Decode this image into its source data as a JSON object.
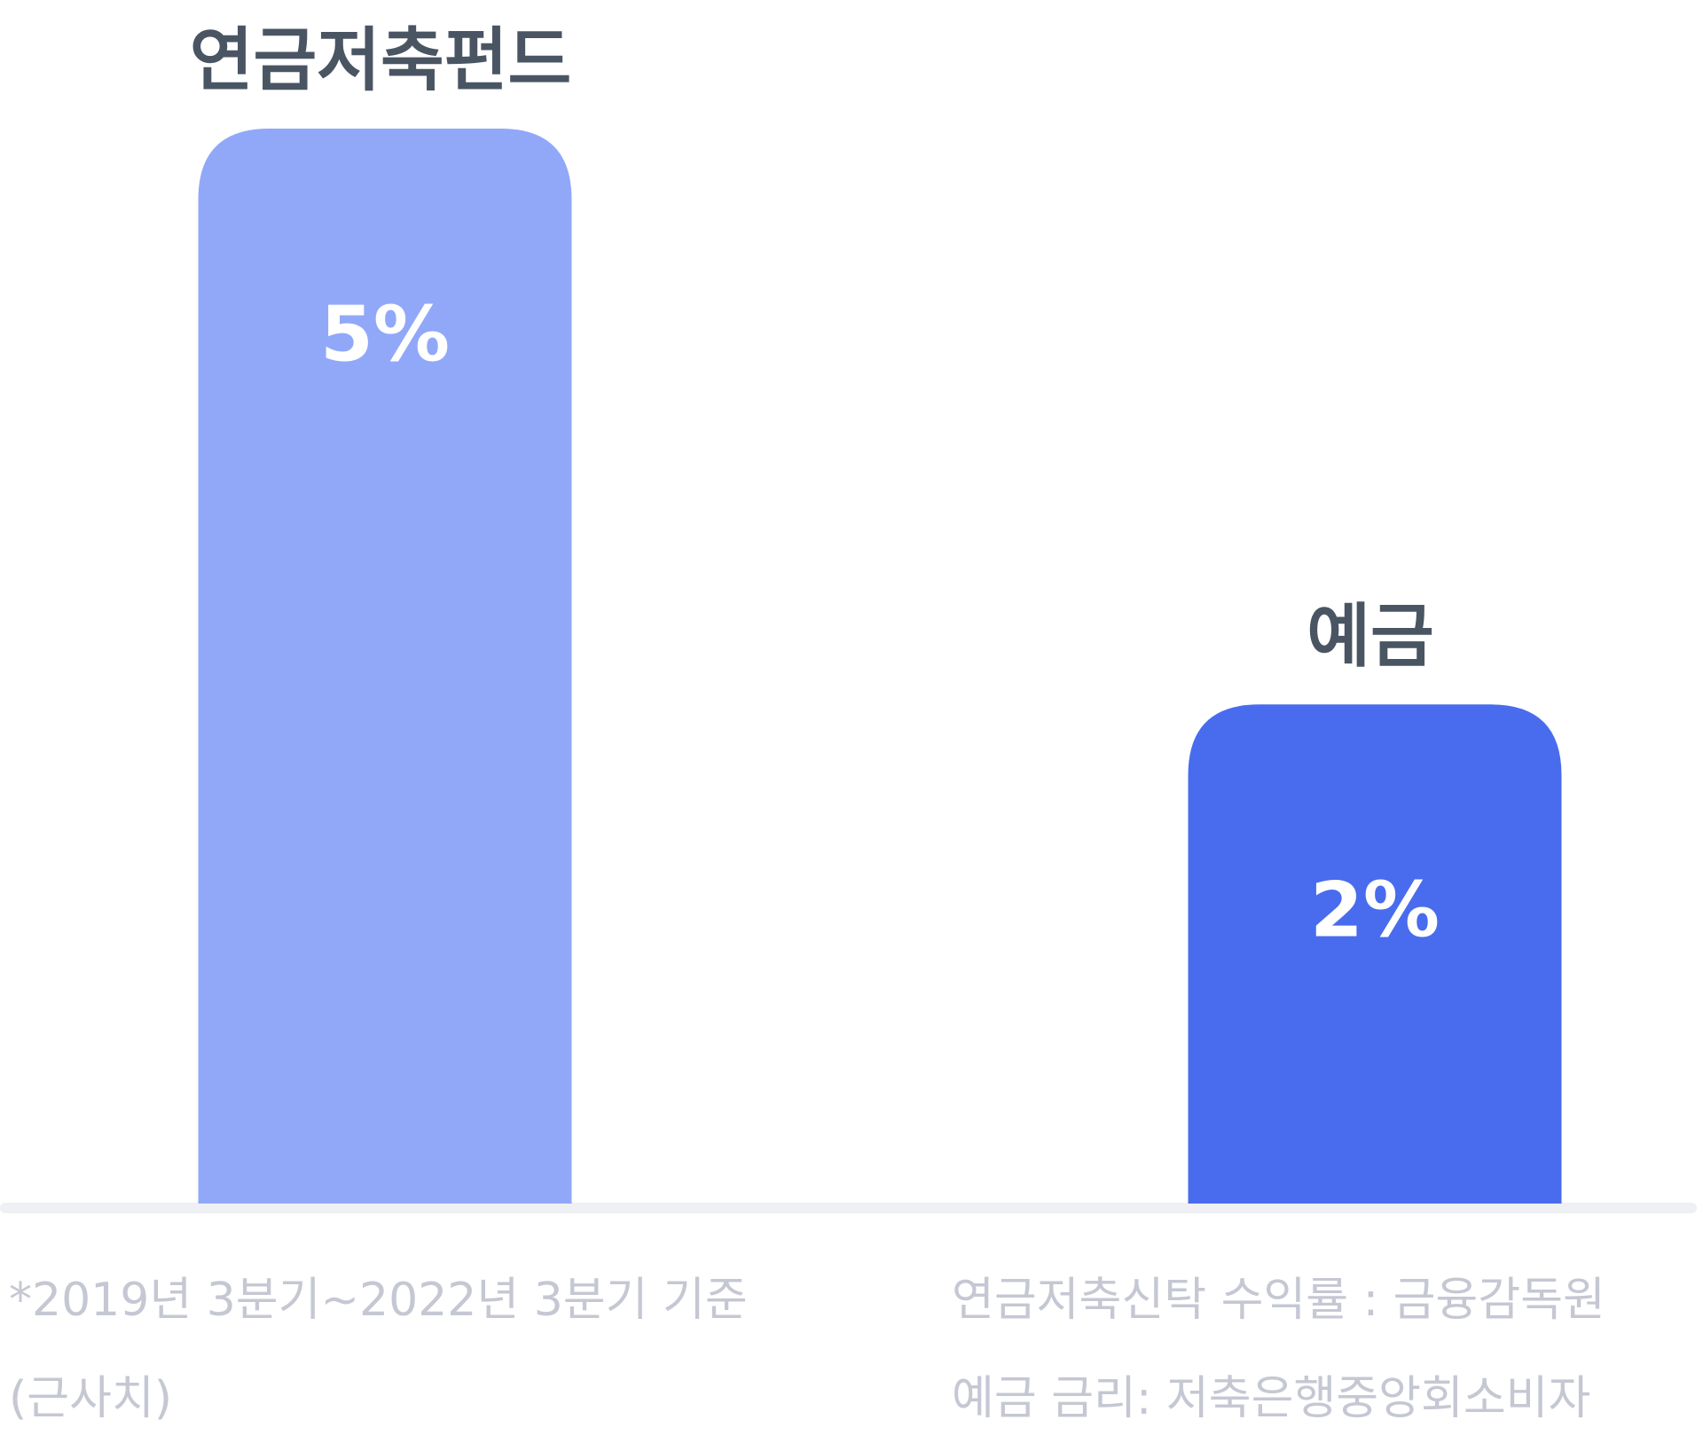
{
  "chart_data": {
    "type": "bar",
    "categories": [
      "연금저축펀드",
      "예금"
    ],
    "values": [
      5,
      2
    ],
    "value_labels": [
      "5%",
      "2%"
    ],
    "colors": [
      "#91a8f9",
      "#486ced"
    ],
    "ylim": [
      -0.6,
      5
    ],
    "notes_left": [
      "*2019년 3분기~2022년 3분기 기준",
      "(근사치)"
    ],
    "notes_right": [
      "연금저축신탁 수익률 : 금융감독원",
      "예금 금리: 저축은행중앙회소비자"
    ]
  }
}
